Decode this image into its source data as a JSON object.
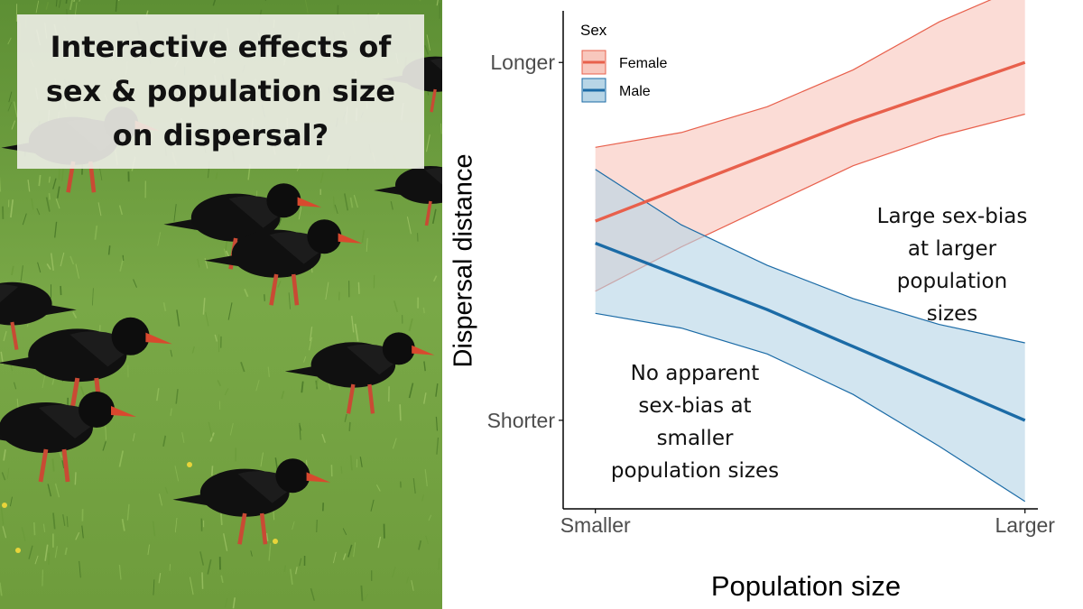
{
  "photo": {
    "title": "Interactive effects of\nsex & population size\non dispersal?"
  },
  "colors": {
    "female": "#e8604c",
    "female_fill": "#f8c7bd",
    "male": "#1b6ba6",
    "male_fill": "#b7d5e6",
    "axis": "#000000",
    "tick_text": "#4d4d4d"
  },
  "chart_data": {
    "type": "line",
    "xlabel": "Population size",
    "ylabel": "Dispersal distance",
    "x_tick_labels": [
      "Smaller",
      "Larger"
    ],
    "y_tick_labels": [
      "Shorter",
      "Longer"
    ],
    "xlim": [
      -0.075,
      1.03
    ],
    "ylim": [
      -0.21,
      1.14
    ],
    "legend": {
      "title": "Sex",
      "position": "top-left"
    },
    "x": [
      0,
      0.2,
      0.4,
      0.6,
      0.8,
      1.0
    ],
    "series": [
      {
        "name": "Female",
        "values": [
          0.57,
          0.66,
          0.75,
          0.84,
          0.92,
          1.0
        ],
        "lower": [
          0.38,
          0.5,
          0.61,
          0.72,
          0.8,
          0.86
        ],
        "upper": [
          0.77,
          0.81,
          0.88,
          0.98,
          1.11,
          1.21
        ]
      },
      {
        "name": "Male",
        "values": [
          0.51,
          0.42,
          0.33,
          0.23,
          0.13,
          0.03
        ],
        "lower": [
          0.32,
          0.28,
          0.21,
          0.1,
          -0.04,
          -0.19
        ],
        "upper": [
          0.71,
          0.56,
          0.45,
          0.36,
          0.29,
          0.24
        ]
      }
    ],
    "annotations": [
      "Large sex-bias\nat larger\npopulation\nsizes",
      "No apparent\nsex-bias at\nsmaller\npopulation sizes"
    ]
  }
}
